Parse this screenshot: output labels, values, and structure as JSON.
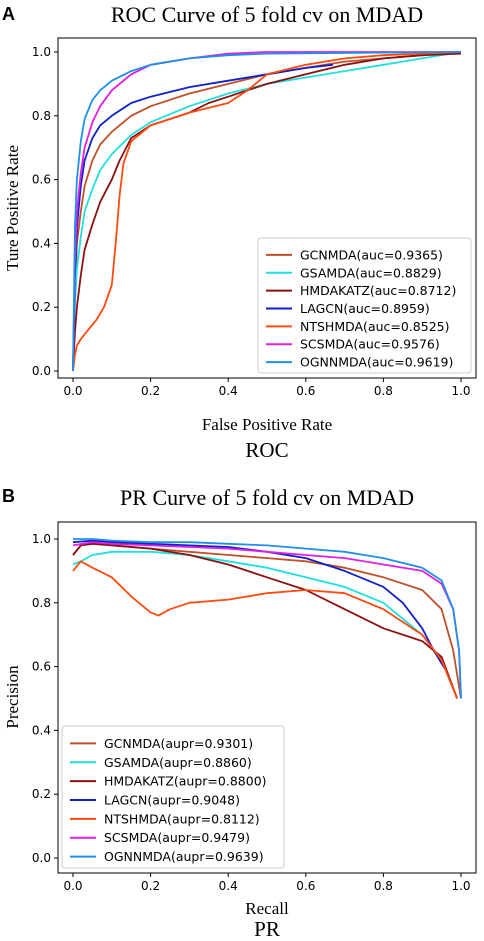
{
  "chart_data": [
    {
      "type": "line",
      "panel_letter": "A",
      "title": "ROC Curve of 5 fold cv on MDAD",
      "xlabel": "False Positive Rate",
      "ylabel": "Ture Positive Rate",
      "caption": "ROC",
      "xlim": [
        0,
        1
      ],
      "ylim": [
        0,
        1
      ],
      "xticks": [
        "0.0",
        "0.2",
        "0.4",
        "0.6",
        "0.8",
        "1.0"
      ],
      "yticks": [
        "0.0",
        "0.2",
        "0.4",
        "0.6",
        "0.8",
        "1.0"
      ],
      "grid": false,
      "legend_position": "lower-right",
      "series": [
        {
          "name": "GCNMDA(auc=0.9365)",
          "color": "#c0502a",
          "points": [
            [
              0,
              0
            ],
            [
              0.005,
              0.25
            ],
            [
              0.01,
              0.4
            ],
            [
              0.02,
              0.5
            ],
            [
              0.03,
              0.58
            ],
            [
              0.05,
              0.66
            ],
            [
              0.07,
              0.71
            ],
            [
              0.1,
              0.75
            ],
            [
              0.15,
              0.8
            ],
            [
              0.2,
              0.83
            ],
            [
              0.3,
              0.87
            ],
            [
              0.4,
              0.9
            ],
            [
              0.5,
              0.93
            ],
            [
              0.6,
              0.95
            ],
            [
              0.7,
              0.97
            ],
            [
              0.8,
              0.98
            ],
            [
              0.9,
              0.99
            ],
            [
              1.0,
              1.0
            ]
          ]
        },
        {
          "name": "GSAMDA(auc=0.8829)",
          "color": "#1fe0e0",
          "points": [
            [
              0,
              0
            ],
            [
              0.005,
              0.2
            ],
            [
              0.01,
              0.32
            ],
            [
              0.02,
              0.42
            ],
            [
              0.03,
              0.5
            ],
            [
              0.05,
              0.57
            ],
            [
              0.07,
              0.63
            ],
            [
              0.1,
              0.68
            ],
            [
              0.15,
              0.74
            ],
            [
              0.2,
              0.78
            ],
            [
              0.3,
              0.83
            ],
            [
              0.4,
              0.87
            ],
            [
              0.5,
              0.9
            ],
            [
              0.6,
              0.92
            ],
            [
              0.7,
              0.94
            ],
            [
              0.8,
              0.96
            ],
            [
              0.9,
              0.98
            ],
            [
              1.0,
              1.0
            ]
          ]
        },
        {
          "name": "HMDAKATZ(auc=0.8712)",
          "color": "#8b1010",
          "points": [
            [
              0,
              0
            ],
            [
              0.005,
              0.12
            ],
            [
              0.01,
              0.2
            ],
            [
              0.02,
              0.3
            ],
            [
              0.03,
              0.38
            ],
            [
              0.05,
              0.46
            ],
            [
              0.07,
              0.53
            ],
            [
              0.1,
              0.6
            ],
            [
              0.12,
              0.66
            ],
            [
              0.15,
              0.73
            ],
            [
              0.2,
              0.77
            ],
            [
              0.25,
              0.79
            ],
            [
              0.3,
              0.81
            ],
            [
              0.35,
              0.84
            ],
            [
              0.4,
              0.86
            ],
            [
              0.5,
              0.9
            ],
            [
              0.6,
              0.93
            ],
            [
              0.7,
              0.96
            ],
            [
              0.8,
              0.98
            ],
            [
              0.9,
              0.99
            ],
            [
              1.0,
              0.995
            ]
          ]
        },
        {
          "name": "LAGCN(auc=0.8959)",
          "color": "#1020c8",
          "points": [
            [
              0,
              0
            ],
            [
              0.005,
              0.3
            ],
            [
              0.01,
              0.45
            ],
            [
              0.02,
              0.58
            ],
            [
              0.03,
              0.66
            ],
            [
              0.05,
              0.73
            ],
            [
              0.07,
              0.77
            ],
            [
              0.1,
              0.8
            ],
            [
              0.15,
              0.84
            ],
            [
              0.2,
              0.86
            ],
            [
              0.3,
              0.89
            ],
            [
              0.4,
              0.91
            ],
            [
              0.5,
              0.93
            ],
            [
              0.6,
              0.95
            ],
            [
              0.67,
              0.96
            ]
          ]
        },
        {
          "name": "NTSHMDA(auc=0.8525)",
          "color": "#ff4a10",
          "points": [
            [
              0,
              0
            ],
            [
              0.005,
              0.05
            ],
            [
              0.01,
              0.08
            ],
            [
              0.02,
              0.1
            ],
            [
              0.04,
              0.13
            ],
            [
              0.06,
              0.16
            ],
            [
              0.08,
              0.2
            ],
            [
              0.1,
              0.27
            ],
            [
              0.11,
              0.4
            ],
            [
              0.12,
              0.55
            ],
            [
              0.13,
              0.65
            ],
            [
              0.15,
              0.72
            ],
            [
              0.2,
              0.77
            ],
            [
              0.3,
              0.81
            ],
            [
              0.4,
              0.84
            ],
            [
              0.45,
              0.88
            ],
            [
              0.5,
              0.93
            ],
            [
              0.6,
              0.96
            ],
            [
              0.7,
              0.98
            ],
            [
              0.8,
              0.99
            ],
            [
              0.9,
              0.995
            ],
            [
              1.0,
              1.0
            ]
          ]
        },
        {
          "name": "SCSMDA(auc=0.9576)",
          "color": "#e020e0",
          "points": [
            [
              0,
              0
            ],
            [
              0.005,
              0.35
            ],
            [
              0.01,
              0.5
            ],
            [
              0.02,
              0.62
            ],
            [
              0.03,
              0.7
            ],
            [
              0.05,
              0.78
            ],
            [
              0.07,
              0.83
            ],
            [
              0.1,
              0.88
            ],
            [
              0.15,
              0.93
            ],
            [
              0.2,
              0.96
            ],
            [
              0.3,
              0.98
            ],
            [
              0.4,
              0.995
            ],
            [
              0.5,
              1.0
            ],
            [
              1.0,
              1.0
            ]
          ]
        },
        {
          "name": "OGNNMDA(auc=0.9619)",
          "color": "#1e90e8",
          "points": [
            [
              0,
              0
            ],
            [
              0.005,
              0.45
            ],
            [
              0.01,
              0.6
            ],
            [
              0.02,
              0.72
            ],
            [
              0.03,
              0.79
            ],
            [
              0.05,
              0.85
            ],
            [
              0.07,
              0.88
            ],
            [
              0.1,
              0.91
            ],
            [
              0.15,
              0.94
            ],
            [
              0.2,
              0.96
            ],
            [
              0.3,
              0.98
            ],
            [
              0.4,
              0.99
            ],
            [
              0.5,
              0.995
            ],
            [
              1.0,
              1.0
            ]
          ]
        }
      ]
    },
    {
      "type": "line",
      "panel_letter": "B",
      "title": "PR Curve of 5 fold cv on MDAD",
      "xlabel": "Recall",
      "ylabel": "Precision",
      "caption": "PR",
      "xlim": [
        0,
        1
      ],
      "ylim": [
        0,
        1
      ],
      "xticks": [
        "0.0",
        "0.2",
        "0.4",
        "0.6",
        "0.8",
        "1.0"
      ],
      "yticks": [
        "0.0",
        "0.2",
        "0.4",
        "0.6",
        "0.8",
        "1.0"
      ],
      "grid": false,
      "legend_position": "lower-left",
      "series": [
        {
          "name": "GCNMDA(aupr=0.9301)",
          "color": "#c0502a",
          "points": [
            [
              0,
              0.95
            ],
            [
              0.02,
              0.98
            ],
            [
              0.05,
              0.99
            ],
            [
              0.1,
              0.98
            ],
            [
              0.2,
              0.97
            ],
            [
              0.3,
              0.96
            ],
            [
              0.4,
              0.95
            ],
            [
              0.5,
              0.94
            ],
            [
              0.6,
              0.93
            ],
            [
              0.7,
              0.91
            ],
            [
              0.8,
              0.88
            ],
            [
              0.9,
              0.84
            ],
            [
              0.95,
              0.78
            ],
            [
              0.98,
              0.65
            ],
            [
              1.0,
              0.5
            ]
          ]
        },
        {
          "name": "GSAMDA(aupr=0.8860)",
          "color": "#1fe0e0",
          "points": [
            [
              0,
              0.92
            ],
            [
              0.02,
              0.93
            ],
            [
              0.05,
              0.95
            ],
            [
              0.1,
              0.96
            ],
            [
              0.2,
              0.96
            ],
            [
              0.3,
              0.95
            ],
            [
              0.4,
              0.93
            ],
            [
              0.5,
              0.91
            ],
            [
              0.6,
              0.88
            ],
            [
              0.7,
              0.85
            ],
            [
              0.8,
              0.8
            ],
            [
              0.85,
              0.75
            ],
            [
              0.9,
              0.7
            ],
            [
              0.95,
              0.62
            ],
            [
              0.99,
              0.5
            ]
          ]
        },
        {
          "name": "HMDAKATZ(aupr=0.8800)",
          "color": "#8b1010",
          "points": [
            [
              0,
              0.95
            ],
            [
              0.02,
              0.98
            ],
            [
              0.05,
              0.985
            ],
            [
              0.1,
              0.98
            ],
            [
              0.2,
              0.97
            ],
            [
              0.3,
              0.95
            ],
            [
              0.4,
              0.92
            ],
            [
              0.5,
              0.88
            ],
            [
              0.6,
              0.84
            ],
            [
              0.7,
              0.78
            ],
            [
              0.8,
              0.72
            ],
            [
              0.9,
              0.68
            ],
            [
              0.95,
              0.63
            ],
            [
              0.99,
              0.5
            ]
          ]
        },
        {
          "name": "LAGCN(aupr=0.9048)",
          "color": "#1020c8",
          "points": [
            [
              0,
              0.99
            ],
            [
              0.05,
              0.995
            ],
            [
              0.1,
              0.99
            ],
            [
              0.2,
              0.985
            ],
            [
              0.3,
              0.98
            ],
            [
              0.4,
              0.975
            ],
            [
              0.5,
              0.96
            ],
            [
              0.6,
              0.94
            ],
            [
              0.7,
              0.9
            ],
            [
              0.8,
              0.85
            ],
            [
              0.85,
              0.8
            ],
            [
              0.9,
              0.72
            ],
            [
              0.93,
              0.65
            ],
            [
              0.96,
              0.59
            ]
          ]
        },
        {
          "name": "NTSHMDA(aupr=0.8112)",
          "color": "#ff4a10",
          "points": [
            [
              0,
              0.9
            ],
            [
              0.02,
              0.93
            ],
            [
              0.05,
              0.91
            ],
            [
              0.1,
              0.88
            ],
            [
              0.15,
              0.82
            ],
            [
              0.2,
              0.77
            ],
            [
              0.22,
              0.76
            ],
            [
              0.25,
              0.78
            ],
            [
              0.3,
              0.8
            ],
            [
              0.4,
              0.81
            ],
            [
              0.5,
              0.83
            ],
            [
              0.6,
              0.84
            ],
            [
              0.7,
              0.83
            ],
            [
              0.8,
              0.78
            ],
            [
              0.9,
              0.7
            ],
            [
              0.95,
              0.62
            ],
            [
              0.99,
              0.5
            ]
          ]
        },
        {
          "name": "SCSMDA(aupr=0.9479)",
          "color": "#e020e0",
          "points": [
            [
              0,
              0.98
            ],
            [
              0.05,
              0.99
            ],
            [
              0.1,
              0.985
            ],
            [
              0.2,
              0.98
            ],
            [
              0.3,
              0.975
            ],
            [
              0.4,
              0.97
            ],
            [
              0.5,
              0.96
            ],
            [
              0.6,
              0.95
            ],
            [
              0.7,
              0.94
            ],
            [
              0.8,
              0.92
            ],
            [
              0.9,
              0.9
            ],
            [
              0.95,
              0.86
            ],
            [
              0.98,
              0.78
            ],
            [
              0.995,
              0.65
            ],
            [
              1.0,
              0.5
            ]
          ]
        },
        {
          "name": "OGNNMDA(aupr=0.9639)",
          "color": "#1e90e8",
          "points": [
            [
              0,
              1.0
            ],
            [
              0.05,
              1.0
            ],
            [
              0.1,
              0.995
            ],
            [
              0.2,
              0.99
            ],
            [
              0.3,
              0.99
            ],
            [
              0.4,
              0.985
            ],
            [
              0.5,
              0.98
            ],
            [
              0.6,
              0.97
            ],
            [
              0.7,
              0.96
            ],
            [
              0.8,
              0.94
            ],
            [
              0.9,
              0.91
            ],
            [
              0.95,
              0.87
            ],
            [
              0.98,
              0.78
            ],
            [
              0.995,
              0.65
            ],
            [
              1.0,
              0.5
            ]
          ]
        }
      ]
    }
  ]
}
